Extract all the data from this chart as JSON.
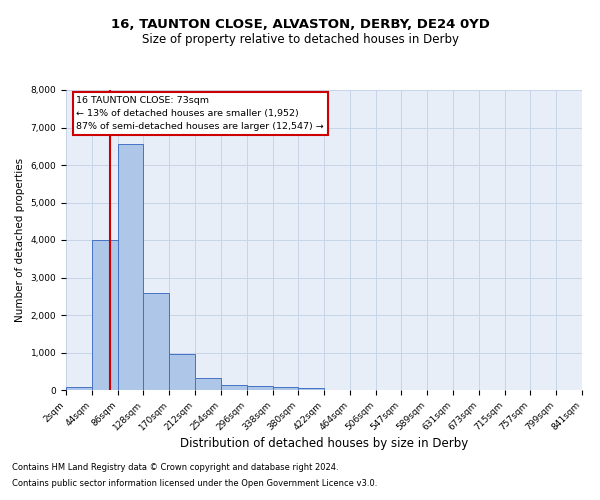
{
  "title1": "16, TAUNTON CLOSE, ALVASTON, DERBY, DE24 0YD",
  "title2": "Size of property relative to detached houses in Derby",
  "xlabel": "Distribution of detached houses by size in Derby",
  "ylabel": "Number of detached properties",
  "footer1": "Contains HM Land Registry data © Crown copyright and database right 2024.",
  "footer2": "Contains public sector information licensed under the Open Government Licence v3.0.",
  "annotation_title": "16 TAUNTON CLOSE: 73sqm",
  "annotation_line1": "← 13% of detached houses are smaller (1,952)",
  "annotation_line2": "87% of semi-detached houses are larger (12,547) →",
  "property_size": 73,
  "bar_edges": [
    2,
    44,
    86,
    128,
    170,
    212,
    254,
    296,
    338,
    380,
    422,
    464,
    506,
    547,
    589,
    631,
    673,
    715,
    757,
    799,
    841
  ],
  "bar_heights": [
    75,
    4000,
    6550,
    2600,
    950,
    310,
    130,
    110,
    75,
    50,
    0,
    0,
    0,
    0,
    0,
    0,
    0,
    0,
    0,
    0
  ],
  "bar_color": "#aec6e8",
  "bar_edge_color": "#4472c4",
  "vline_color": "#cc0000",
  "vline_x": 73,
  "ylim": [
    0,
    8000
  ],
  "yticks": [
    0,
    1000,
    2000,
    3000,
    4000,
    5000,
    6000,
    7000,
    8000
  ],
  "grid_color": "#c8d4e8",
  "bg_color": "#e8eef8",
  "annotation_box_color": "#ffffff",
  "annotation_box_edge": "#cc0000",
  "title1_fontsize": 9.5,
  "title2_fontsize": 8.5,
  "xlabel_fontsize": 8.5,
  "ylabel_fontsize": 7.5,
  "tick_fontsize": 6.5,
  "footer_fontsize": 6.0
}
